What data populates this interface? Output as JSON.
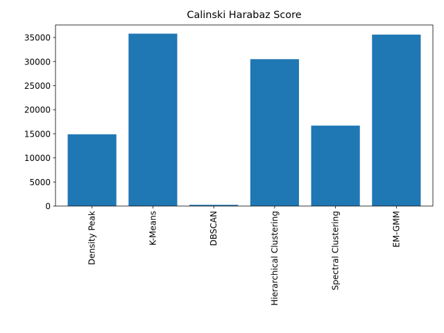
{
  "chart_data": {
    "type": "bar",
    "title": "Calinski Harabaz Score",
    "xlabel": "",
    "ylabel": "",
    "categories": [
      "Density Peak",
      "K-Means",
      "DBSCAN",
      "Hierarchical Clustering",
      "Spectral Clustering",
      "EM-GMM"
    ],
    "values": [
      14900,
      35800,
      250,
      30500,
      16700,
      35600
    ],
    "ylim": [
      0,
      37600
    ],
    "yticks": [
      0,
      5000,
      10000,
      15000,
      20000,
      25000,
      30000,
      35000
    ],
    "ytick_labels": [
      "0",
      "5000",
      "10000",
      "15000",
      "20000",
      "25000",
      "30000",
      "35000"
    ],
    "grid": false,
    "legend": "none",
    "bar_color": "#1f77b4"
  }
}
